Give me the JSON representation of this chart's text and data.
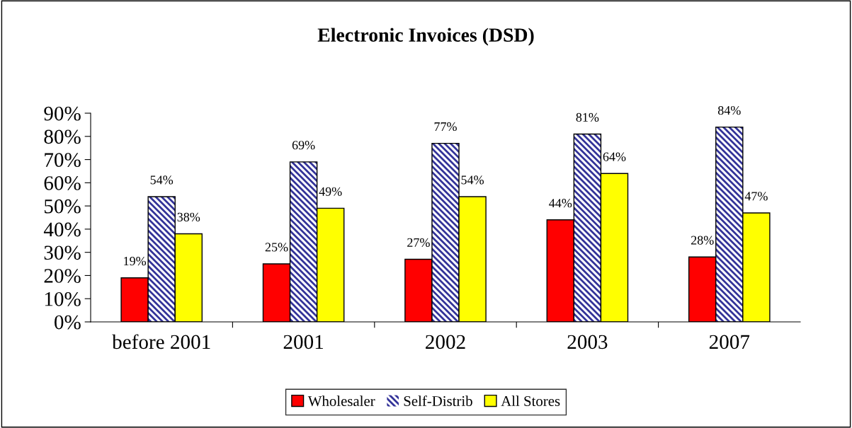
{
  "chart_data": {
    "type": "bar",
    "title": "Electronic Invoices (DSD)",
    "categories": [
      "before 2001",
      "2001",
      "2002",
      "2003",
      "2007"
    ],
    "series": [
      {
        "name": "Wholesaler",
        "color": "#ff0000",
        "values": [
          19,
          25,
          27,
          44,
          28
        ],
        "value_labels": [
          "19%",
          "25%",
          "27%",
          "44%",
          "28%"
        ]
      },
      {
        "name": "Self-Distrib",
        "color": "#333399",
        "values": [
          54,
          69,
          77,
          81,
          84
        ],
        "value_labels": [
          "54%",
          "69%",
          "77%",
          "81%",
          "84%"
        ]
      },
      {
        "name": "All Stores",
        "color": "#ffff00",
        "values": [
          38,
          49,
          54,
          64,
          47
        ],
        "value_labels": [
          "38%",
          "49%",
          "54%",
          "64%",
          "47%"
        ]
      }
    ],
    "ylim": [
      0,
      90
    ],
    "yticks": [
      {
        "value": 0,
        "label": "0%"
      },
      {
        "value": 10,
        "label": "10%"
      },
      {
        "value": 20,
        "label": "20%"
      },
      {
        "value": 30,
        "label": "30%"
      },
      {
        "value": 40,
        "label": "40%"
      },
      {
        "value": 50,
        "label": "50%"
      },
      {
        "value": 60,
        "label": "60%"
      },
      {
        "value": 70,
        "label": "70%"
      },
      {
        "value": 80,
        "label": "80%"
      },
      {
        "value": 90,
        "label": "90%"
      }
    ],
    "grid": false,
    "legend": "bottom"
  }
}
